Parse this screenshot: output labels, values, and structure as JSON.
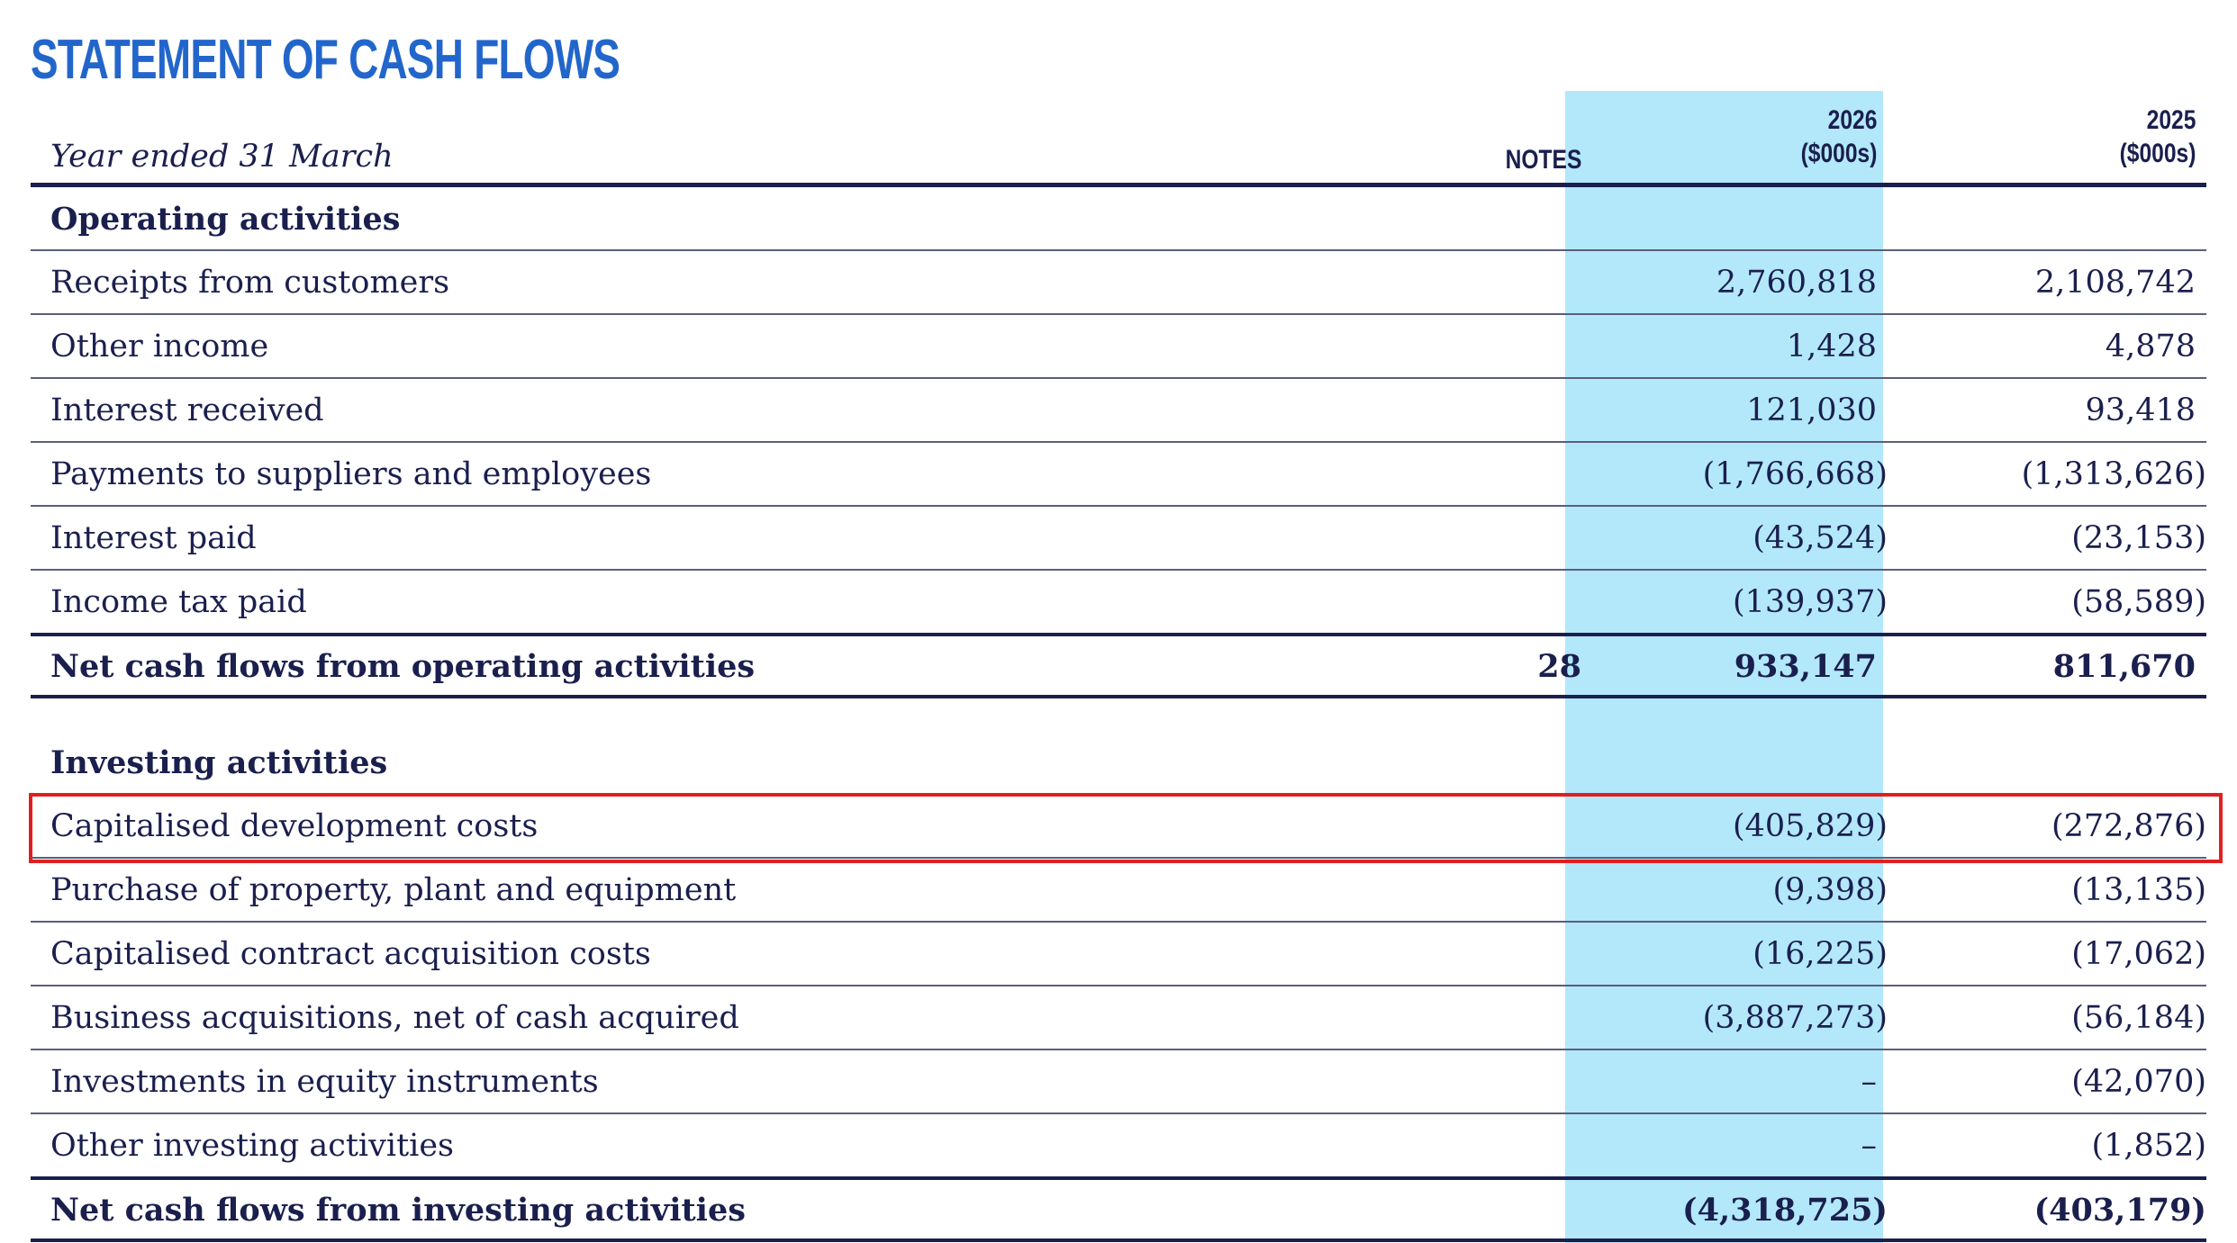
{
  "statement": {
    "title": "STATEMENT OF CASH FLOWS",
    "year_label": "Year ended 31 March",
    "columns": {
      "notes": "NOTES",
      "y2026_year": "2026",
      "y2026_unit": "($000s)",
      "y2025_year": "2025",
      "y2025_unit": "($000s)"
    },
    "highlight_color": "#b3e8fb",
    "selection_color": "#e02020",
    "rows": [
      {
        "label": "Operating activities",
        "notes": "",
        "v2026": "",
        "v2025": ""
      },
      {
        "label": "Receipts from customers",
        "notes": "",
        "v2026": "2,760,818",
        "v2025": "2,108,742"
      },
      {
        "label": "Other income",
        "notes": "",
        "v2026": "1,428",
        "v2025": "4,878"
      },
      {
        "label": "Interest received",
        "notes": "",
        "v2026": "121,030",
        "v2025": "93,418"
      },
      {
        "label": "Payments to suppliers and employees",
        "notes": "",
        "v2026": "(1,766,668)",
        "v2025": "(1,313,626)"
      },
      {
        "label": "Interest paid",
        "notes": "",
        "v2026": "(43,524)",
        "v2025": "(23,153)"
      },
      {
        "label": "Income tax paid",
        "notes": "",
        "v2026": "(139,937)",
        "v2025": "(58,589)"
      },
      {
        "label": "Net cash flows from operating activities",
        "notes": "28",
        "v2026": "933,147",
        "v2025": "811,670"
      },
      {
        "label": "Investing activities",
        "notes": "",
        "v2026": "",
        "v2025": ""
      },
      {
        "label": "Capitalised development costs",
        "notes": "",
        "v2026": "(405,829)",
        "v2025": "(272,876)"
      },
      {
        "label": "Purchase of property, plant and equipment",
        "notes": "",
        "v2026": "(9,398)",
        "v2025": "(13,135)"
      },
      {
        "label": "Capitalised contract acquisition costs",
        "notes": "",
        "v2026": "(16,225)",
        "v2025": "(17,062)"
      },
      {
        "label": "Business acquisitions, net of cash acquired",
        "notes": "",
        "v2026": "(3,887,273)",
        "v2025": "(56,184)"
      },
      {
        "label": "Investments in equity instruments",
        "notes": "",
        "v2026": "–",
        "v2025": "(42,070)"
      },
      {
        "label": "Other investing activities",
        "notes": "",
        "v2026": "–",
        "v2025": "(1,852)"
      },
      {
        "label": "Net cash flows from investing activities",
        "notes": "",
        "v2026": "(4,318,725)",
        "v2025": "(403,179)"
      }
    ]
  }
}
